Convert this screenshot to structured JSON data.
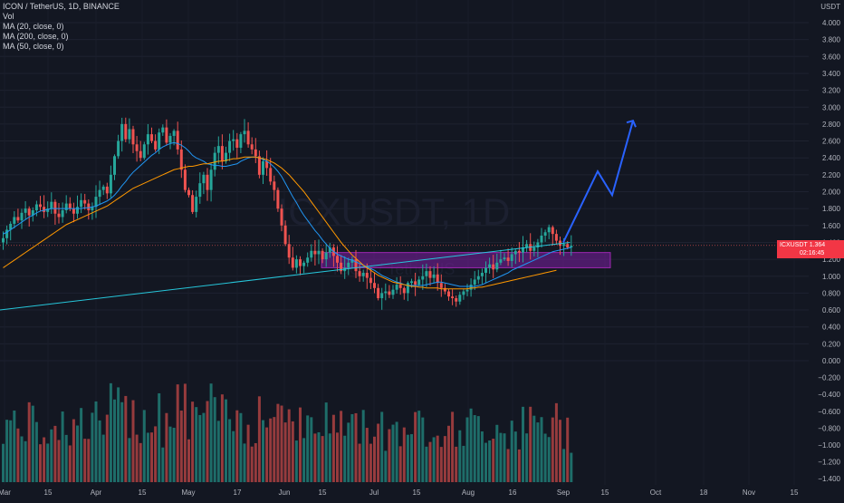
{
  "legend": {
    "title": "ICON / TetherUS, 1D, BINANCE",
    "vol": "Vol",
    "ma1": "MA (20, close, 0)",
    "ma2": "MA (200, close, 0)",
    "ma3": "MA (50, close, 0)"
  },
  "watermark": {
    "symbol": "ICXUSDT, 1D",
    "name": "ICON / TetherUS"
  },
  "price_tag": {
    "symbol": "ICXUSDT",
    "price": "1.364",
    "countdown": "02:16:45"
  },
  "colors": {
    "background": "#131722",
    "up": "#26a69a",
    "down": "#ef5350",
    "ma20": "#2196f3",
    "ma50": "#ff9800",
    "ma200": "#26c6da",
    "projection": "#2962ff",
    "zone": "#7b1fa2"
  },
  "chart_data": {
    "type": "candlestick",
    "price_axis": {
      "unit": "USDT",
      "ticks": [
        "4.000",
        "3.800",
        "3.600",
        "3.400",
        "3.200",
        "3.000",
        "2.800",
        "2.600",
        "2.400",
        "2.200",
        "2.000",
        "1.800",
        "1.600",
        "1.400",
        "1.200",
        "1.000",
        "0.800",
        "0.600",
        "0.400",
        "0.200",
        "0.000"
      ],
      "ylim": [
        0.0,
        4.4
      ]
    },
    "volume_axis": {
      "ticks": [
        "−0.000",
        "−0.200",
        "−0.400",
        "−0.600",
        "−0.800",
        "−1.000",
        "−1.200",
        "−1.400"
      ]
    },
    "time_axis": {
      "ticks": [
        "Mar",
        "15",
        "Apr",
        "15",
        "May",
        "17",
        "Jun",
        "15",
        "Jul",
        "15",
        "Aug",
        "16",
        "Sep",
        "15",
        "Oct",
        "18",
        "Nov",
        "15"
      ]
    },
    "close_series": [
      1.45,
      1.55,
      1.62,
      1.7,
      1.66,
      1.75,
      1.8,
      1.72,
      1.78,
      1.85,
      1.82,
      1.76,
      1.8,
      1.88,
      1.74,
      1.7,
      1.78,
      1.86,
      1.8,
      1.74,
      1.82,
      1.9,
      1.86,
      1.78,
      1.82,
      1.94,
      2.02,
      2.06,
      1.98,
      2.2,
      2.42,
      2.6,
      2.8,
      2.62,
      2.74,
      2.56,
      2.48,
      2.4,
      2.56,
      2.68,
      2.6,
      2.5,
      2.7,
      2.76,
      2.58,
      2.66,
      2.72,
      2.5,
      2.26,
      2.02,
      1.96,
      1.76,
      1.94,
      2.1,
      2.2,
      2.02,
      2.26,
      2.46,
      2.54,
      2.36,
      2.46,
      2.6,
      2.62,
      2.52,
      2.68,
      2.72,
      2.56,
      2.5,
      2.42,
      2.2,
      2.36,
      2.28,
      2.12,
      2.02,
      1.8,
      1.6,
      1.38,
      1.22,
      1.1,
      1.2,
      1.12,
      1.16,
      1.22,
      1.3,
      1.26,
      1.3,
      1.2,
      1.28,
      1.34,
      1.24,
      1.16,
      1.06,
      1.1,
      1.16,
      1.2,
      1.06,
      1.0,
      1.04,
      0.98,
      0.92,
      0.86,
      0.74,
      0.8,
      0.82,
      0.78,
      0.84,
      0.9,
      0.86,
      0.8,
      0.92,
      0.94,
      0.9,
      0.96,
      1.0,
      1.06,
      0.98,
      1.02,
      0.92,
      0.86,
      0.82,
      0.76,
      0.74,
      0.7,
      0.78,
      0.82,
      0.84,
      0.9,
      0.96,
      1.0,
      1.04,
      1.1,
      1.14,
      1.08,
      1.16,
      1.2,
      1.22,
      1.18,
      1.26,
      1.3,
      1.28,
      1.34,
      1.38,
      1.3,
      1.34,
      1.4,
      1.48,
      1.52,
      1.58,
      1.5,
      1.42,
      1.36,
      1.38,
      1.34,
      1.36
    ],
    "ma_series": [
      {
        "name": "MA (20, close, 0)",
        "values": [
          1.5,
          1.52,
          1.55,
          1.58,
          1.61,
          1.64,
          1.67,
          1.7,
          1.72,
          1.75,
          1.77,
          1.78,
          1.79,
          1.8,
          1.8,
          1.8,
          1.8,
          1.8,
          1.8,
          1.8,
          1.8,
          1.8,
          1.81,
          1.81,
          1.82,
          1.83,
          1.85,
          1.87,
          1.89,
          1.92,
          1.96,
          2.01,
          2.07,
          2.12,
          2.18,
          2.23,
          2.27,
          2.31,
          2.35,
          2.39,
          2.43,
          2.46,
          2.5,
          2.53,
          2.55,
          2.57,
          2.58,
          2.57,
          2.55,
          2.52,
          2.48,
          2.43,
          2.4,
          2.38,
          2.36,
          2.33,
          2.32,
          2.31,
          2.31,
          2.3,
          2.3,
          2.31,
          2.32,
          2.33,
          2.36,
          2.38,
          2.4,
          2.41,
          2.41,
          2.4,
          2.38,
          2.36,
          2.33,
          2.29,
          2.24,
          2.18,
          2.1,
          2.02,
          1.94,
          1.87,
          1.79,
          1.72,
          1.66,
          1.6,
          1.54,
          1.49,
          1.43,
          1.38,
          1.33,
          1.29,
          1.26,
          1.24,
          1.22,
          1.2,
          1.19,
          1.17,
          1.15,
          1.13,
          1.11,
          1.09,
          1.07,
          1.04,
          1.01,
          0.99,
          0.97,
          0.95,
          0.93,
          0.92,
          0.9,
          0.89,
          0.89,
          0.89,
          0.89,
          0.89,
          0.9,
          0.91,
          0.92,
          0.93,
          0.93,
          0.92,
          0.91,
          0.9,
          0.89,
          0.88,
          0.88,
          0.88,
          0.88,
          0.88,
          0.89,
          0.9,
          0.92,
          0.94,
          0.96,
          0.98,
          1.0,
          1.02,
          1.04,
          1.07,
          1.09,
          1.11,
          1.13,
          1.15,
          1.17,
          1.19,
          1.21,
          1.23,
          1.25,
          1.27,
          1.29,
          1.3,
          1.31,
          1.32,
          1.33,
          1.34
        ]
      },
      {
        "name": "MA (200, close, 0)",
        "values": [
          0.6,
          1.4
        ]
      },
      {
        "name": "MA (50, close, 0)",
        "values": [
          1.1,
          1.13,
          1.16,
          1.19,
          1.22,
          1.25,
          1.28,
          1.31,
          1.34,
          1.37,
          1.4,
          1.43,
          1.46,
          1.49,
          1.52,
          1.55,
          1.58,
          1.61,
          1.63,
          1.65,
          1.67,
          1.69,
          1.71,
          1.73,
          1.75,
          1.77,
          1.79,
          1.81,
          1.83,
          1.86,
          1.89,
          1.92,
          1.95,
          1.98,
          2.01,
          2.04,
          2.06,
          2.08,
          2.1,
          2.12,
          2.14,
          2.16,
          2.18,
          2.2,
          2.22,
          2.24,
          2.26,
          2.27,
          2.28,
          2.29,
          2.3,
          2.3,
          2.31,
          2.32,
          2.33,
          2.33,
          2.34,
          2.35,
          2.36,
          2.36,
          2.37,
          2.38,
          2.39,
          2.39,
          2.4,
          2.41,
          2.41,
          2.41,
          2.41,
          2.4,
          2.39,
          2.38,
          2.36,
          2.34,
          2.31,
          2.28,
          2.24,
          2.2,
          2.15,
          2.1,
          2.05,
          2.0,
          1.94,
          1.88,
          1.82,
          1.76,
          1.7,
          1.64,
          1.58,
          1.52,
          1.46,
          1.4,
          1.35,
          1.3,
          1.25,
          1.21,
          1.17,
          1.13,
          1.1,
          1.07,
          1.04,
          1.01,
          0.99,
          0.97,
          0.95,
          0.93,
          0.92,
          0.91,
          0.9,
          0.89,
          0.88,
          0.88,
          0.87,
          0.87,
          0.86,
          0.86,
          0.86,
          0.86,
          0.85,
          0.85,
          0.85,
          0.85,
          0.85,
          0.85,
          0.85,
          0.85,
          0.86,
          0.86,
          0.87,
          0.87,
          0.88,
          0.89,
          0.9,
          0.91,
          0.92,
          0.93,
          0.94,
          0.95,
          0.96,
          0.97,
          0.98,
          0.99,
          1.0,
          1.01,
          1.02,
          1.03,
          1.04,
          1.05,
          1.06,
          1.07
        ]
      }
    ],
    "zone": {
      "price_low": 1.1,
      "price_high": 1.28
    },
    "projection": [
      1.4,
      2.24,
      1.96,
      2.84
    ],
    "last_price": 1.364,
    "volume_max": 1.45
  }
}
